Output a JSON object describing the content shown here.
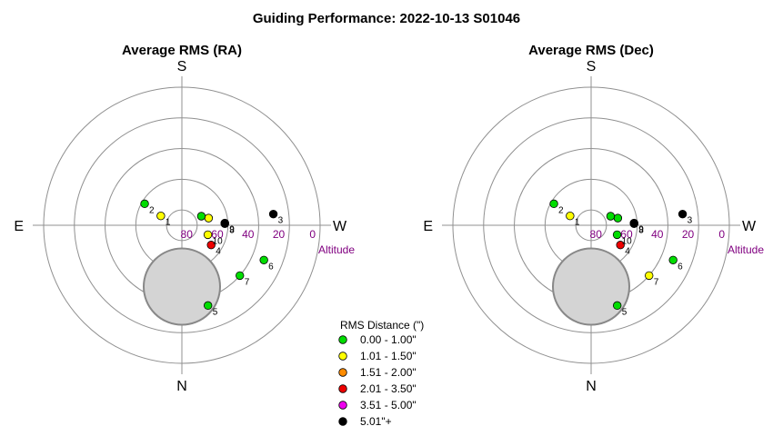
{
  "chart_data": {
    "type": "scatter",
    "title": "Guiding Performance: 2022-10-13 S01046",
    "coordinate_system": "polar altitude/azimuth",
    "directions": {
      "top": "S",
      "bottom": "N",
      "left": "E",
      "right": "W"
    },
    "altitude_axis": {
      "label": "Altitude",
      "ticks": [
        {
          "value": 80,
          "label": "80"
        },
        {
          "value": 60,
          "label": "60"
        },
        {
          "value": 40,
          "label": "40"
        },
        {
          "value": 20,
          "label": "20"
        },
        {
          "value": 0,
          "label": "0"
        }
      ],
      "range": [
        0,
        90
      ],
      "rings": [
        80,
        60,
        40,
        20,
        0
      ]
    },
    "legend": {
      "title": "RMS Distance (\")",
      "placement": "bottom-center",
      "entries": [
        {
          "label": "0.00 - 1.00\"",
          "color": "#00dd00"
        },
        {
          "label": "1.01 - 1.50\"",
          "color": "#ffff00"
        },
        {
          "label": "1.51 - 2.00\"",
          "color": "#ff8c00"
        },
        {
          "label": "2.01 - 3.50\"",
          "color": "#ee0000"
        },
        {
          "label": "3.51 - 5.00\"",
          "color": "#ee00ee"
        },
        {
          "label": "5.01\"+",
          "color": "#000000"
        }
      ]
    },
    "panels": [
      {
        "title": "Average RMS (RA)",
        "zenith_exclusion": {
          "azimuth": 0,
          "altitude": 50,
          "radius_deg": 14
        },
        "points": [
          {
            "label": "1",
            "azimuth": 114,
            "altitude": 75,
            "cat": 1
          },
          {
            "label": "2",
            "azimuth": 120,
            "altitude": 62,
            "cat": 0
          },
          {
            "label": "3",
            "azimuth": 263,
            "altitude": 30,
            "cat": 5
          },
          {
            "label": "4",
            "azimuth": 304,
            "altitude": 67,
            "cat": 3
          },
          {
            "label": "5",
            "azimuth": 342,
            "altitude": 35,
            "cat": 0
          },
          {
            "label": "6",
            "azimuth": 293,
            "altitude": 32,
            "cat": 0
          },
          {
            "label": "7",
            "azimuth": 311,
            "altitude": 40,
            "cat": 0
          },
          {
            "label": "8",
            "azimuth": 268,
            "altitude": 62,
            "cat": 5
          },
          {
            "label": "9",
            "azimuth": 267,
            "altitude": 62,
            "cat": 5
          },
          {
            "label": "10",
            "azimuth": 290,
            "altitude": 72,
            "cat": 1
          },
          {
            "label": "",
            "azimuth": 255,
            "altitude": 72,
            "cat": 1
          },
          {
            "label": "",
            "azimuth": 245,
            "altitude": 76,
            "cat": 0
          }
        ]
      },
      {
        "title": "Average RMS (Dec)",
        "zenith_exclusion": {
          "azimuth": 0,
          "altitude": 50,
          "radius_deg": 14
        },
        "points": [
          {
            "label": "1",
            "azimuth": 114,
            "altitude": 75,
            "cat": 1
          },
          {
            "label": "2",
            "azimuth": 120,
            "altitude": 62,
            "cat": 0
          },
          {
            "label": "3",
            "azimuth": 263,
            "altitude": 30,
            "cat": 5
          },
          {
            "label": "4",
            "azimuth": 304,
            "altitude": 67,
            "cat": 3
          },
          {
            "label": "5",
            "azimuth": 342,
            "altitude": 35,
            "cat": 0
          },
          {
            "label": "6",
            "azimuth": 293,
            "altitude": 32,
            "cat": 0
          },
          {
            "label": "7",
            "azimuth": 311,
            "altitude": 40,
            "cat": 1
          },
          {
            "label": "8",
            "azimuth": 268,
            "altitude": 62,
            "cat": 5
          },
          {
            "label": "9",
            "azimuth": 267,
            "altitude": 62,
            "cat": 5
          },
          {
            "label": "10",
            "azimuth": 290,
            "altitude": 72,
            "cat": 0
          },
          {
            "label": "",
            "azimuth": 255,
            "altitude": 72,
            "cat": 0
          },
          {
            "label": "",
            "azimuth": 245,
            "altitude": 76,
            "cat": 0
          }
        ]
      }
    ]
  }
}
